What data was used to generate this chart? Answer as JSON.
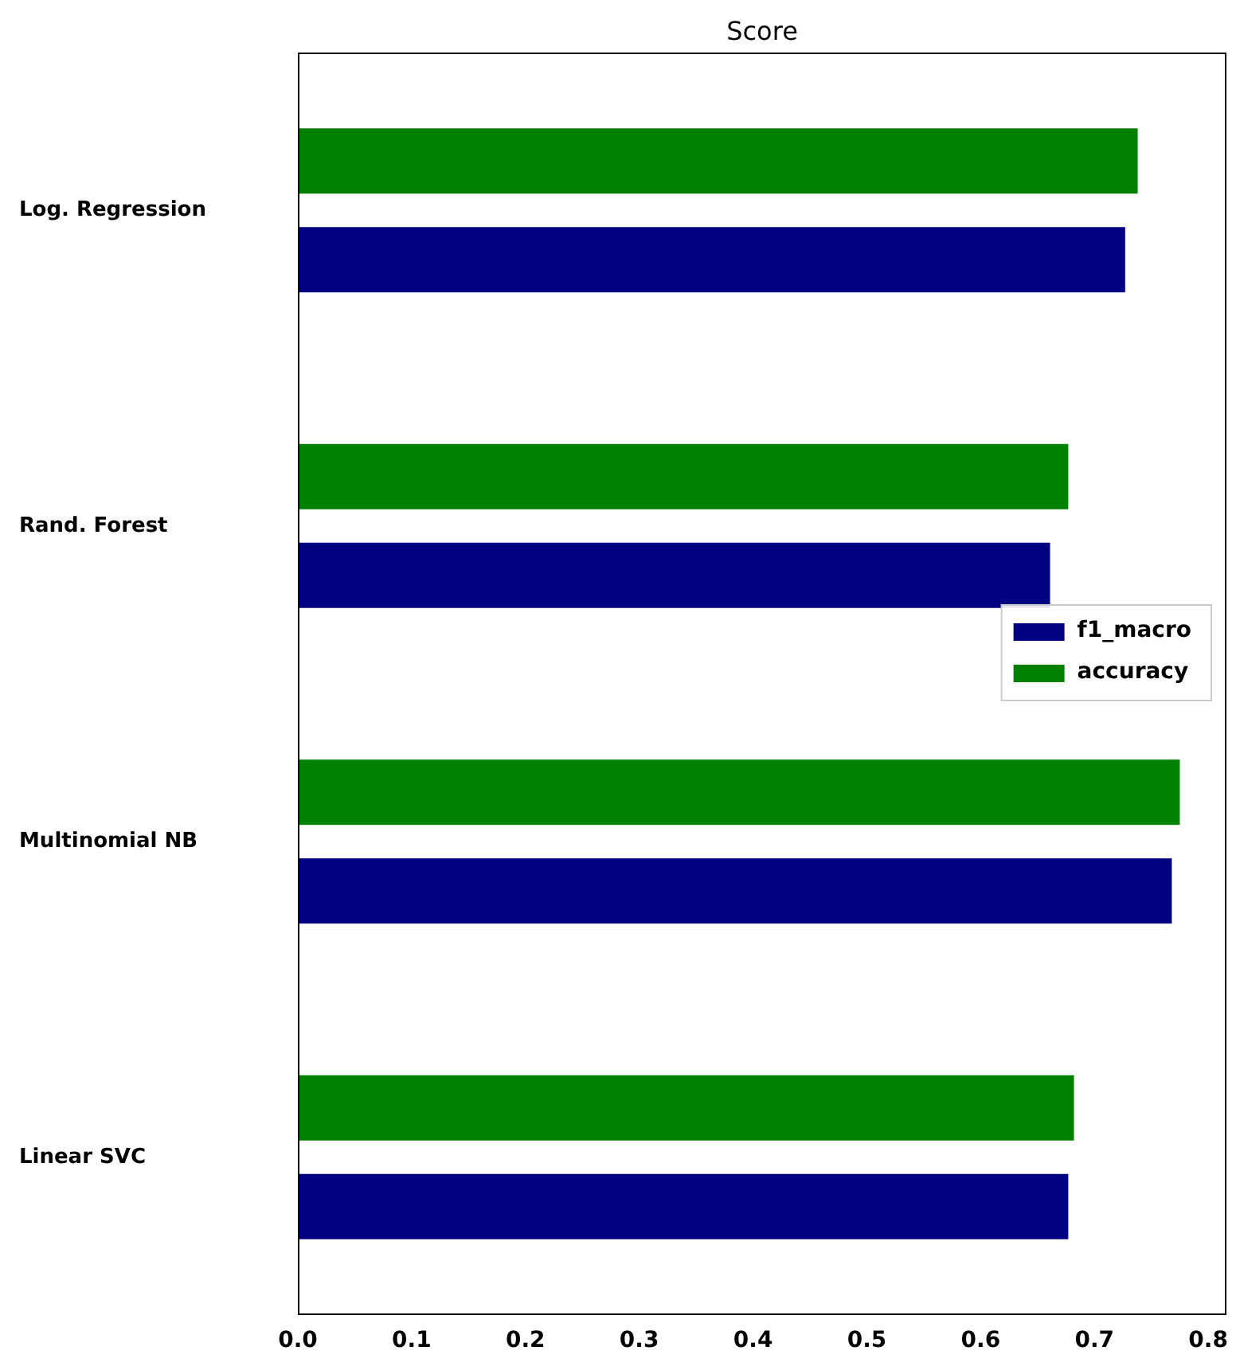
{
  "chart_data": {
    "type": "bar",
    "orientation": "horizontal",
    "title": "Score",
    "categories": [
      "Log. Regression",
      "Rand. Forest",
      "Multinomial NB",
      "Linear SVC"
    ],
    "series": [
      {
        "name": "f1_macro",
        "color": "#000080",
        "values": [
          0.727,
          0.661,
          0.768,
          0.677
        ]
      },
      {
        "name": "accuracy",
        "color": "#008000",
        "values": [
          0.738,
          0.677,
          0.775,
          0.682
        ]
      }
    ],
    "xlim": [
      0,
      0.816
    ],
    "xticks": [
      {
        "value": 0,
        "label": "0.0"
      },
      0.1,
      0.2,
      0.3,
      0.4,
      0.5,
      0.6,
      0.7,
      0.8
    ],
    "grid": false,
    "legend": "right"
  }
}
